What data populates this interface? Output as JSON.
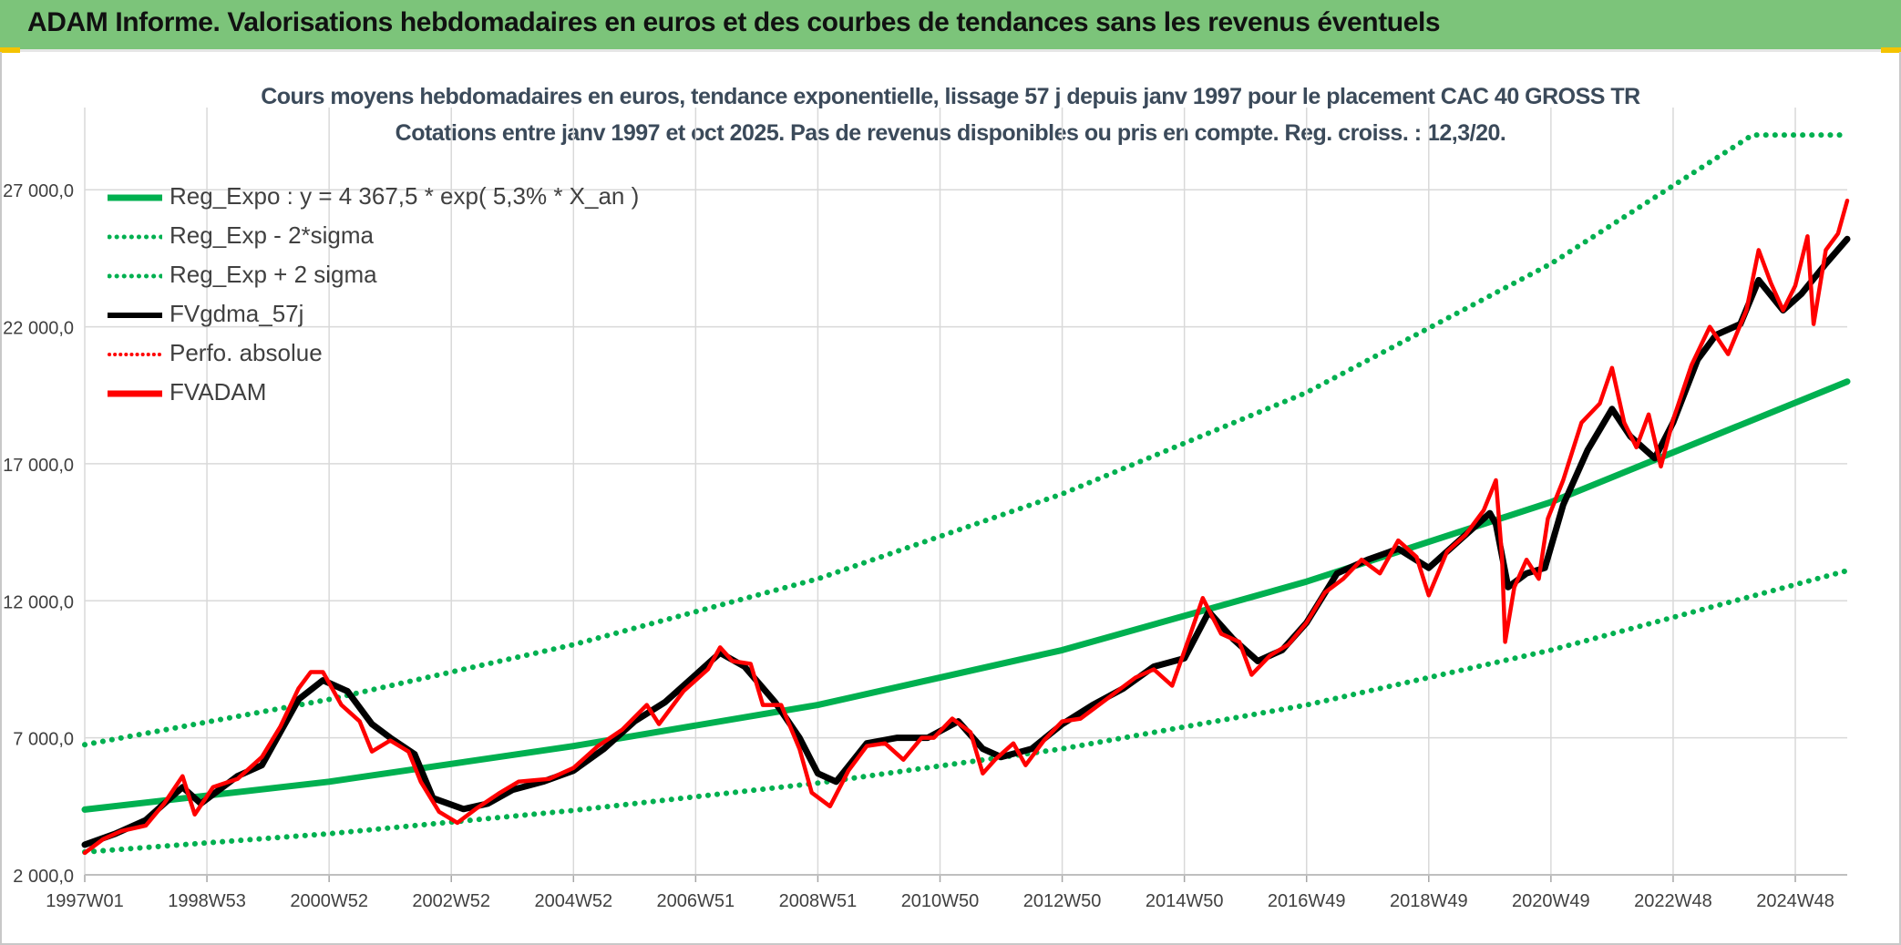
{
  "banner": {
    "title": "ADAM Informe. Valorisations hebdomadaires en euros et des courbes de tendances sans les revenus éventuels"
  },
  "chart_data": {
    "type": "line",
    "title_line1": "Cours moyens hebdomadaires en euros, tendance exponentielle, lissage 57 j depuis janv 1997 pour le placement CAC 40 GROSS TR",
    "title_line2": "Cotations entre janv 1997 et oct 2025. Pas de revenus disponibles ou pris en compte. Reg. croiss. : 12,3/20.",
    "ylim": [
      2000,
      30000
    ],
    "yticks": [
      2000,
      7000,
      12000,
      17000,
      22000,
      27000
    ],
    "ytick_labels": [
      "2 000,0",
      "7 000,0",
      "12 000,0",
      "17 000,0",
      "22 000,0",
      "27 000,0"
    ],
    "xlim": [
      1997.0,
      2025.85
    ],
    "xtick_labels": [
      "1997W01",
      "1998W53",
      "2000W52",
      "2002W52",
      "2004W52",
      "2006W51",
      "2008W51",
      "2010W50",
      "2012W50",
      "2014W50",
      "2016W49",
      "2018W49",
      "2020W49",
      "2022W48",
      "2024W48"
    ],
    "xtick_positions": [
      1997.0,
      1999.0,
      2001.0,
      2003.0,
      2005.0,
      2007.0,
      2009.0,
      2011.0,
      2013.0,
      2015.0,
      2017.0,
      2019.0,
      2021.0,
      2023.0,
      2025.0
    ],
    "grid": true,
    "legend_position": "top-left",
    "colors": {
      "reg_expo": "#00b050",
      "fvgdma": "#000000",
      "fvadam": "#ff0000",
      "grid": "#d9d9d9"
    },
    "series": [
      {
        "name": "Reg_Expo : y = 4 367,5 * exp( 5,3% *  X_an )",
        "style": "solid",
        "color": "#00b050",
        "points": [
          [
            1997.0,
            4380
          ],
          [
            2001.0,
            5400
          ],
          [
            2005.0,
            6700
          ],
          [
            2009.0,
            8200
          ],
          [
            2013.0,
            10200
          ],
          [
            2017.0,
            12700
          ],
          [
            2021.0,
            15600
          ],
          [
            2025.85,
            20000
          ]
        ]
      },
      {
        "name": "Reg_Exp - 2*sigma",
        "style": "dotted",
        "color": "#00b050",
        "points": [
          [
            1997.0,
            2830
          ],
          [
            2001.0,
            3500
          ],
          [
            2005.0,
            4350
          ],
          [
            2009.0,
            5350
          ],
          [
            2013.0,
            6600
          ],
          [
            2017.0,
            8200
          ],
          [
            2021.0,
            10200
          ],
          [
            2025.85,
            13100
          ]
        ]
      },
      {
        "name": "Reg_Exp + 2 sigma",
        "style": "dotted",
        "color": "#00b050",
        "points": [
          [
            1997.0,
            6750
          ],
          [
            2001.0,
            8400
          ],
          [
            2005.0,
            10400
          ],
          [
            2009.0,
            12800
          ],
          [
            2013.0,
            15900
          ],
          [
            2017.0,
            19600
          ],
          [
            2021.0,
            24300
          ],
          [
            2024.3,
            29000
          ],
          [
            2025.85,
            29000
          ]
        ]
      },
      {
        "name": "FVgdma_57j",
        "style": "solid",
        "color": "#000000",
        "points": [
          [
            1997.0,
            3100
          ],
          [
            1997.5,
            3500
          ],
          [
            1998.0,
            4000
          ],
          [
            1998.6,
            5200
          ],
          [
            1998.9,
            4600
          ],
          [
            1999.5,
            5600
          ],
          [
            1999.9,
            6000
          ],
          [
            2000.5,
            8400
          ],
          [
            2000.9,
            9100
          ],
          [
            2001.3,
            8700
          ],
          [
            2001.7,
            7500
          ],
          [
            2002.0,
            7000
          ],
          [
            2002.4,
            6400
          ],
          [
            2002.7,
            4800
          ],
          [
            2003.2,
            4400
          ],
          [
            2003.6,
            4600
          ],
          [
            2004.0,
            5100
          ],
          [
            2004.5,
            5400
          ],
          [
            2005.0,
            5800
          ],
          [
            2005.5,
            6600
          ],
          [
            2006.0,
            7600
          ],
          [
            2006.5,
            8300
          ],
          [
            2007.0,
            9300
          ],
          [
            2007.4,
            10100
          ],
          [
            2007.8,
            9600
          ],
          [
            2008.3,
            8300
          ],
          [
            2008.7,
            7000
          ],
          [
            2009.0,
            5700
          ],
          [
            2009.3,
            5400
          ],
          [
            2009.8,
            6800
          ],
          [
            2010.3,
            7000
          ],
          [
            2010.8,
            7000
          ],
          [
            2011.3,
            7600
          ],
          [
            2011.7,
            6600
          ],
          [
            2012.0,
            6300
          ],
          [
            2012.5,
            6600
          ],
          [
            2013.0,
            7500
          ],
          [
            2013.5,
            8200
          ],
          [
            2014.0,
            8800
          ],
          [
            2014.5,
            9600
          ],
          [
            2015.0,
            9900
          ],
          [
            2015.4,
            11600
          ],
          [
            2015.8,
            10600
          ],
          [
            2016.2,
            9800
          ],
          [
            2016.6,
            10200
          ],
          [
            2017.0,
            11200
          ],
          [
            2017.5,
            13000
          ],
          [
            2018.0,
            13500
          ],
          [
            2018.5,
            13900
          ],
          [
            2019.0,
            13200
          ],
          [
            2019.5,
            14200
          ],
          [
            2020.0,
            15200
          ],
          [
            2020.1,
            14800
          ],
          [
            2020.3,
            12500
          ],
          [
            2020.6,
            13000
          ],
          [
            2020.9,
            13200
          ],
          [
            2021.2,
            15500
          ],
          [
            2021.6,
            17500
          ],
          [
            2022.0,
            19000
          ],
          [
            2022.3,
            18000
          ],
          [
            2022.7,
            17200
          ],
          [
            2023.0,
            18500
          ],
          [
            2023.4,
            20800
          ],
          [
            2023.7,
            21700
          ],
          [
            2024.1,
            22100
          ],
          [
            2024.4,
            23700
          ],
          [
            2024.8,
            22600
          ],
          [
            2025.1,
            23200
          ],
          [
            2025.5,
            24300
          ],
          [
            2025.85,
            25200
          ]
        ]
      },
      {
        "name": "Perfo. absolue",
        "style": "dotted",
        "color": "#ff0000",
        "points": []
      },
      {
        "name": "FVADAM",
        "style": "solid",
        "color": "#ff0000",
        "points": [
          [
            1997.0,
            2800
          ],
          [
            1997.3,
            3300
          ],
          [
            1997.6,
            3600
          ],
          [
            1998.0,
            3800
          ],
          [
            1998.3,
            4600
          ],
          [
            1998.6,
            5600
          ],
          [
            1998.8,
            4200
          ],
          [
            1999.1,
            5200
          ],
          [
            1999.5,
            5500
          ],
          [
            1999.9,
            6300
          ],
          [
            2000.2,
            7400
          ],
          [
            2000.5,
            8800
          ],
          [
            2000.7,
            9400
          ],
          [
            2000.9,
            9400
          ],
          [
            2001.2,
            8200
          ],
          [
            2001.5,
            7600
          ],
          [
            2001.7,
            6500
          ],
          [
            2002.0,
            6900
          ],
          [
            2002.3,
            6500
          ],
          [
            2002.5,
            5400
          ],
          [
            2002.8,
            4300
          ],
          [
            2003.1,
            3900
          ],
          [
            2003.4,
            4400
          ],
          [
            2003.8,
            5000
          ],
          [
            2004.1,
            5400
          ],
          [
            2004.6,
            5500
          ],
          [
            2005.0,
            5900
          ],
          [
            2005.4,
            6700
          ],
          [
            2005.8,
            7300
          ],
          [
            2006.2,
            8200
          ],
          [
            2006.4,
            7500
          ],
          [
            2006.8,
            8700
          ],
          [
            2007.2,
            9500
          ],
          [
            2007.4,
            10300
          ],
          [
            2007.6,
            9800
          ],
          [
            2007.9,
            9700
          ],
          [
            2008.1,
            8200
          ],
          [
            2008.4,
            8200
          ],
          [
            2008.7,
            6600
          ],
          [
            2008.9,
            5000
          ],
          [
            2009.2,
            4500
          ],
          [
            2009.5,
            5800
          ],
          [
            2009.8,
            6700
          ],
          [
            2010.1,
            6800
          ],
          [
            2010.4,
            6200
          ],
          [
            2010.7,
            7000
          ],
          [
            2010.9,
            7000
          ],
          [
            2011.2,
            7700
          ],
          [
            2011.5,
            7200
          ],
          [
            2011.7,
            5700
          ],
          [
            2011.9,
            6200
          ],
          [
            2012.2,
            6800
          ],
          [
            2012.4,
            6000
          ],
          [
            2012.7,
            6900
          ],
          [
            2013.0,
            7600
          ],
          [
            2013.3,
            7700
          ],
          [
            2013.6,
            8200
          ],
          [
            2013.9,
            8700
          ],
          [
            2014.2,
            9200
          ],
          [
            2014.5,
            9500
          ],
          [
            2014.8,
            8900
          ],
          [
            2015.1,
            10800
          ],
          [
            2015.3,
            12100
          ],
          [
            2015.6,
            10800
          ],
          [
            2015.9,
            10500
          ],
          [
            2016.1,
            9300
          ],
          [
            2016.4,
            10000
          ],
          [
            2016.7,
            10400
          ],
          [
            2017.0,
            11200
          ],
          [
            2017.3,
            12300
          ],
          [
            2017.6,
            12800
          ],
          [
            2017.9,
            13500
          ],
          [
            2018.2,
            13000
          ],
          [
            2018.5,
            14200
          ],
          [
            2018.8,
            13600
          ],
          [
            2019.0,
            12200
          ],
          [
            2019.3,
            13800
          ],
          [
            2019.6,
            14400
          ],
          [
            2019.9,
            15300
          ],
          [
            2020.1,
            16400
          ],
          [
            2020.2,
            13600
          ],
          [
            2020.25,
            10500
          ],
          [
            2020.4,
            12500
          ],
          [
            2020.6,
            13500
          ],
          [
            2020.8,
            12800
          ],
          [
            2020.95,
            15000
          ],
          [
            2021.2,
            16400
          ],
          [
            2021.5,
            18500
          ],
          [
            2021.8,
            19200
          ],
          [
            2022.0,
            20500
          ],
          [
            2022.2,
            18500
          ],
          [
            2022.4,
            17600
          ],
          [
            2022.6,
            18800
          ],
          [
            2022.8,
            16900
          ],
          [
            2023.0,
            18600
          ],
          [
            2023.3,
            20600
          ],
          [
            2023.6,
            22000
          ],
          [
            2023.9,
            21000
          ],
          [
            2024.2,
            22600
          ],
          [
            2024.4,
            24800
          ],
          [
            2024.6,
            23600
          ],
          [
            2024.8,
            22600
          ],
          [
            2025.0,
            23500
          ],
          [
            2025.2,
            25300
          ],
          [
            2025.3,
            22100
          ],
          [
            2025.5,
            24800
          ],
          [
            2025.7,
            25400
          ],
          [
            2025.85,
            26600
          ]
        ]
      }
    ]
  }
}
